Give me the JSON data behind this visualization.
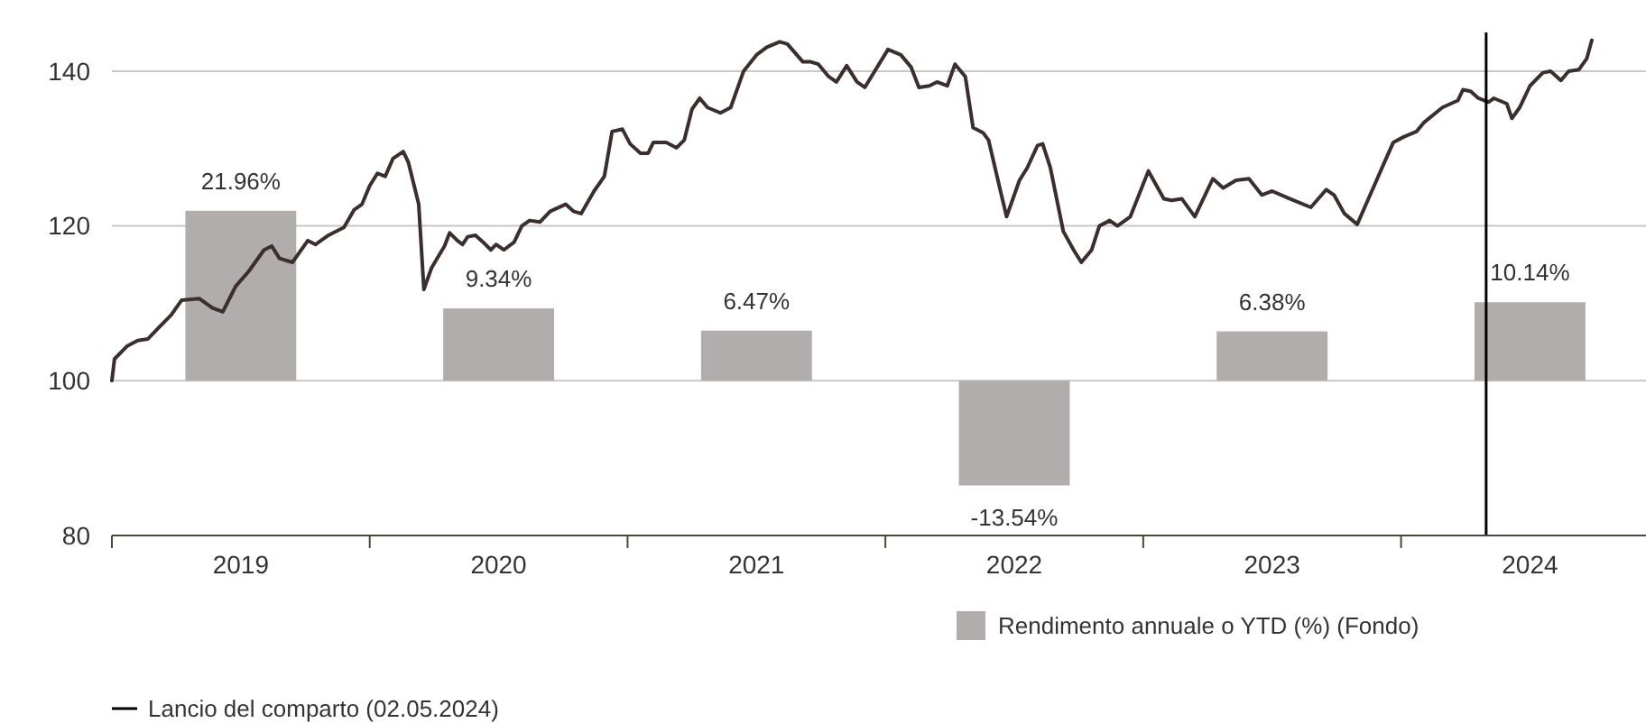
{
  "chart_data": {
    "type": "line",
    "xlim": [
      2019,
      2024.95
    ],
    "ylim": [
      80,
      145
    ],
    "yticks": [
      80,
      100,
      120,
      140
    ],
    "xticks": [
      {
        "value": 2019,
        "label": null
      },
      {
        "value": 2019.5,
        "label": "2019"
      },
      {
        "value": 2020,
        "label": null
      },
      {
        "value": 2020.5,
        "label": "2020"
      },
      {
        "value": 2021,
        "label": null
      },
      {
        "value": 2021.5,
        "label": "2021"
      },
      {
        "value": 2022,
        "label": null
      },
      {
        "value": 2022.5,
        "label": "2022"
      },
      {
        "value": 2023,
        "label": null
      },
      {
        "value": 2023.5,
        "label": "2023"
      },
      {
        "value": 2024,
        "label": null
      },
      {
        "value": 2024.5,
        "label": "2024"
      }
    ],
    "grid": "y",
    "legend": "bottom",
    "line_style": "solid",
    "marker": "none",
    "ref_lines": [
      {
        "axis": "x",
        "value": 2024.33,
        "label": "Lancio del comparto (02.05.2024)",
        "color": "#000000"
      }
    ],
    "series": [
      {
        "type": "bar",
        "name": "Rendimento annuale o YTD (%) (Fondo)",
        "color": "#b0adac",
        "x": [
          2019.5,
          2020.5,
          2021.5,
          2022.5,
          2023.5,
          2024.5
        ],
        "base": [
          100,
          100,
          100,
          100,
          100,
          100
        ],
        "values": [
          21.96,
          9.34,
          6.47,
          -13.54,
          6.38,
          10.14
        ],
        "value_labels": [
          "21.96%",
          "9.34%",
          "6.47%",
          "-13.54%",
          "6.38%",
          "10.14%"
        ]
      },
      {
        "color": "#3a2e2e",
        "x": [
          2019.0,
          2019.01,
          2019.06,
          2019.1,
          2019.14,
          2019.18,
          2019.23,
          2019.27,
          2019.34,
          2019.39,
          2019.43,
          2019.48,
          2019.53,
          2019.59,
          2019.62,
          2019.65,
          2019.7,
          2019.76,
          2019.79,
          2019.84,
          2019.9,
          2019.94,
          2019.97,
          2020.0,
          2020.03,
          2020.06,
          2020.09,
          2020.13,
          2020.15,
          2020.19,
          2020.21,
          2020.24,
          2020.29,
          2020.31,
          2020.34,
          2020.36,
          2020.38,
          2020.41,
          2020.44,
          2020.47,
          2020.49,
          2020.52,
          2020.56,
          2020.59,
          2020.62,
          2020.66,
          2020.7,
          2020.76,
          2020.79,
          2020.82,
          2020.87,
          2020.91,
          2020.94,
          2020.98,
          2021.01,
          2021.05,
          2021.08,
          2021.1,
          2021.15,
          2021.19,
          2021.22,
          2021.25,
          2021.28,
          2021.31,
          2021.36,
          2021.4,
          2021.45,
          2021.5,
          2021.54,
          2021.59,
          2021.62,
          2021.68,
          2021.71,
          2021.74,
          2021.78,
          2021.81,
          2021.85,
          2021.89,
          2021.92,
          2022.01,
          2022.06,
          2022.1,
          2022.13,
          2022.17,
          2022.2,
          2022.24,
          2022.27,
          2022.31,
          2022.34,
          2022.38,
          2022.4,
          2022.45,
          2022.47,
          2022.52,
          2022.55,
          2022.59,
          2022.61,
          2022.64,
          2022.69,
          2022.73,
          2022.76,
          2022.8,
          2022.83,
          2022.87,
          2022.9,
          2022.95,
          2023.02,
          2023.04,
          2023.08,
          2023.11,
          2023.15,
          2023.2,
          2023.24,
          2023.27,
          2023.31,
          2023.36,
          2023.41,
          2023.46,
          2023.5,
          2023.57,
          2023.65,
          2023.71,
          2023.74,
          2023.78,
          2023.83,
          2023.88,
          2023.93,
          2023.97,
          2024.01,
          2024.06,
          2024.09,
          2024.16,
          2024.22,
          2024.24,
          2024.27,
          2024.3,
          2024.34,
          2024.36,
          2024.41,
          2024.43,
          2024.46,
          2024.5,
          2024.55,
          2024.58,
          2024.62,
          2024.65,
          2024.69,
          2024.72,
          2024.74
        ],
        "values": [
          100,
          102.8,
          104.5,
          105.2,
          105.4,
          106.8,
          108.5,
          110.4,
          110.6,
          109.4,
          108.9,
          112.2,
          114.1,
          116.9,
          117.4,
          115.8,
          115.3,
          118.1,
          117.6,
          118.8,
          119.8,
          122.1,
          122.8,
          125.2,
          126.8,
          126.4,
          128.7,
          129.6,
          128.2,
          122.8,
          111.8,
          114.6,
          117.4,
          119.1,
          118.1,
          117.6,
          118.6,
          118.8,
          117.9,
          116.9,
          117.6,
          116.9,
          117.9,
          120.0,
          120.7,
          120.5,
          121.9,
          122.8,
          121.9,
          121.6,
          124.5,
          126.4,
          132.2,
          132.5,
          130.6,
          129.4,
          129.4,
          130.8,
          130.8,
          130.1,
          131.1,
          135.1,
          136.5,
          135.3,
          134.6,
          135.3,
          140.0,
          142.1,
          143.1,
          143.8,
          143.5,
          141.2,
          141.2,
          140.9,
          139.3,
          138.6,
          140.7,
          138.6,
          137.9,
          142.8,
          142.1,
          140.5,
          137.9,
          138.1,
          138.6,
          138.1,
          140.9,
          139.3,
          132.7,
          132.0,
          131.1,
          124.0,
          121.2,
          125.9,
          127.5,
          130.4,
          130.6,
          127.5,
          119.3,
          116.9,
          115.3,
          116.9,
          120.0,
          120.7,
          120.0,
          121.2,
          127.1,
          125.9,
          123.5,
          123.3,
          123.5,
          121.2,
          124.0,
          126.1,
          124.9,
          125.9,
          126.1,
          124.0,
          124.5,
          123.5,
          122.4,
          124.7,
          124.0,
          121.6,
          120.2,
          124.0,
          127.8,
          130.8,
          131.5,
          132.2,
          133.4,
          135.3,
          136.2,
          137.6,
          137.4,
          136.5,
          136.0,
          136.5,
          135.8,
          133.9,
          135.3,
          138.1,
          139.8,
          140.0,
          138.8,
          140.0,
          140.2,
          141.6,
          144.0
        ]
      }
    ]
  }
}
